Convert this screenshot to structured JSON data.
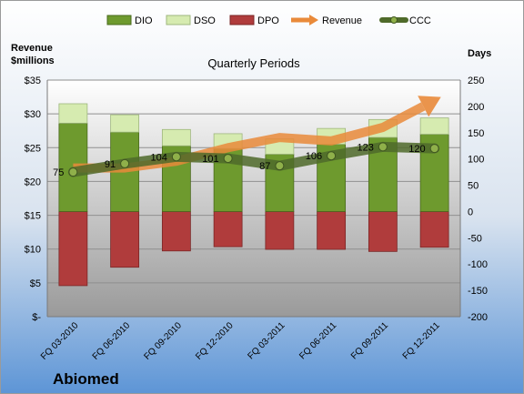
{
  "company": "Abiomed",
  "chart_data": {
    "type": "bar",
    "title": "Quarterly Periods",
    "left_axis_title": [
      "Revenue",
      "$millions"
    ],
    "right_axis_title": "Days",
    "left_axis": {
      "min": 0,
      "max": 35,
      "step": 5,
      "ticks": [
        "$-",
        "$5",
        "$10",
        "$15",
        "$20",
        "$25",
        "$30",
        "$35"
      ]
    },
    "right_axis": {
      "min": -200,
      "max": 250,
      "step": 50,
      "ticks": [
        "-200",
        "-150",
        "-100",
        "-50",
        "0",
        "50",
        "100",
        "150",
        "200",
        "250"
      ]
    },
    "legend": [
      "DIO",
      "DSO",
      "DPO",
      "Revenue",
      "CCC"
    ],
    "legend_position": "top",
    "categories": [
      "FQ 03-2010",
      "FQ 06-2010",
      "FQ 09-2010",
      "FQ 12-2010",
      "FQ 03-2011",
      "FQ 06-2011",
      "FQ 09-2011",
      "FQ 12-2011"
    ],
    "series": [
      {
        "name": "DIO",
        "axis": "days",
        "values": [
          168,
          151,
          125,
          120,
          109,
          128,
          141,
          147
        ]
      },
      {
        "name": "DSO",
        "axis": "days",
        "values": [
          37,
          33,
          31,
          28,
          29,
          30,
          34,
          31
        ]
      },
      {
        "name": "DPO",
        "axis": "days",
        "values": [
          -141,
          -106,
          -75,
          -67,
          -72,
          -72,
          -76,
          -68
        ]
      },
      {
        "name": "Revenue",
        "axis": "revenue",
        "values": [
          22.0,
          22.0,
          23.0,
          25.0,
          26.5,
          26.0,
          28.0,
          32.0
        ]
      },
      {
        "name": "CCC",
        "axis": "days",
        "values": [
          75,
          91,
          104,
          101,
          87,
          106,
          123,
          120
        ]
      }
    ],
    "ccc_labels": [
      "75",
      "91",
      "104",
      "101",
      "87",
      "106",
      "123",
      "120"
    ],
    "colors": {
      "DIO": "#6e9a2e",
      "DSO": "#d6ebb0",
      "DPO": "#b03c3c",
      "Revenue": "#e98a3a",
      "CCC": "#4f6a2a",
      "CCC_marker": "#8fb04a"
    },
    "grid": true
  }
}
